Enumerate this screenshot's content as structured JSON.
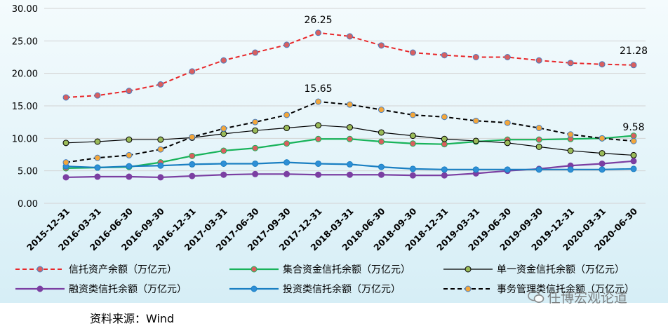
{
  "chart_data": {
    "type": "line",
    "categories": [
      "2015-12-31",
      "2016-03-31",
      "2016-06-30",
      "2016-09-30",
      "2016-12-31",
      "2017-03-31",
      "2017-06-30",
      "2017-09-30",
      "2017-12-31",
      "2018-03-31",
      "2018-06-30",
      "2018-09-30",
      "2018-12-31",
      "2019-03-31",
      "2019-06-30",
      "2019-09-30",
      "2019-12-31",
      "2020-03-31",
      "2020-06-30"
    ],
    "ylim": [
      0,
      30
    ],
    "yticks": [
      "0.00",
      "5.00",
      "10.00",
      "15.00",
      "20.00",
      "25.00",
      "30.00"
    ],
    "grid": true,
    "legend_position": "bottom",
    "series": [
      {
        "name": "信托资产余额（万亿元）",
        "color": "#e8272a",
        "dashed": true,
        "marker": "#d95f5f",
        "values": [
          16.3,
          16.6,
          17.3,
          18.3,
          20.3,
          22.0,
          23.2,
          24.4,
          26.25,
          25.7,
          24.3,
          23.2,
          22.8,
          22.5,
          22.5,
          22.0,
          21.6,
          21.4,
          21.28
        ]
      },
      {
        "name": "集合资金信托余额（万亿元）",
        "color": "#18b35a",
        "dashed": false,
        "marker": "#d95f5f",
        "values": [
          5.4,
          5.5,
          5.6,
          6.3,
          7.3,
          8.1,
          8.5,
          9.2,
          9.9,
          9.9,
          9.5,
          9.2,
          9.1,
          9.5,
          9.8,
          9.8,
          9.9,
          10.0,
          10.4
        ]
      },
      {
        "name": "单一资金信托余额（万亿元）",
        "color": "#000000",
        "dashed": false,
        "marker": "#9abb59",
        "values": [
          9.3,
          9.5,
          9.8,
          9.8,
          10.1,
          10.7,
          11.2,
          11.6,
          12.0,
          11.7,
          10.9,
          10.4,
          9.9,
          9.6,
          9.3,
          8.7,
          8.1,
          7.7,
          7.4
        ]
      },
      {
        "name": "融资类信托余额（万亿元）",
        "color": "#7b3fa2",
        "dashed": false,
        "marker": "#7b3fa2",
        "values": [
          4.0,
          4.1,
          4.1,
          4.0,
          4.2,
          4.4,
          4.5,
          4.5,
          4.4,
          4.4,
          4.4,
          4.3,
          4.3,
          4.6,
          5.0,
          5.3,
          5.8,
          6.1,
          6.5
        ]
      },
      {
        "name": "投资类信托余额（万亿元）",
        "color": "#1a7fc2",
        "dashed": false,
        "marker": "#2e8fd6",
        "values": [
          5.7,
          5.5,
          5.7,
          5.8,
          6.0,
          6.1,
          6.1,
          6.3,
          6.1,
          6.0,
          5.6,
          5.3,
          5.2,
          5.2,
          5.2,
          5.2,
          5.2,
          5.2,
          5.3
        ]
      },
      {
        "name": "事务管理类信托余额（万亿元）",
        "color": "#000000",
        "dashed": true,
        "marker": "#f3a63a",
        "values": [
          6.3,
          7.0,
          7.4,
          8.3,
          10.2,
          11.5,
          12.5,
          13.6,
          15.65,
          15.2,
          14.4,
          13.6,
          13.3,
          12.7,
          12.4,
          11.6,
          10.6,
          10.0,
          9.58
        ]
      }
    ],
    "annotations": [
      "26.25",
      "21.28",
      "15.65",
      "9.58"
    ]
  },
  "source_note": "资料来源：Wind",
  "watermark": "任博宏观论道"
}
